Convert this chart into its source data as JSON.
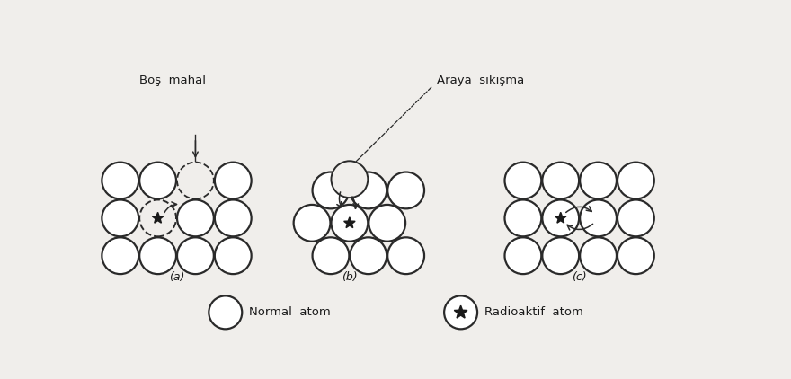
{
  "bg_color": "#f0eeeb",
  "circle_color": "#2a2a2a",
  "circle_lw": 1.6,
  "arrow_color": "#2a2a2a",
  "text_color": "#1a1a1a",
  "panel_a_label": "(a)",
  "panel_b_label": "(b)",
  "panel_c_label": "(c)",
  "label_bos": "Boş  mahal",
  "label_araya": "Araya  sıkışma",
  "legend_normal": "Normal  atom",
  "legend_radio": "Radioaktif  atom"
}
